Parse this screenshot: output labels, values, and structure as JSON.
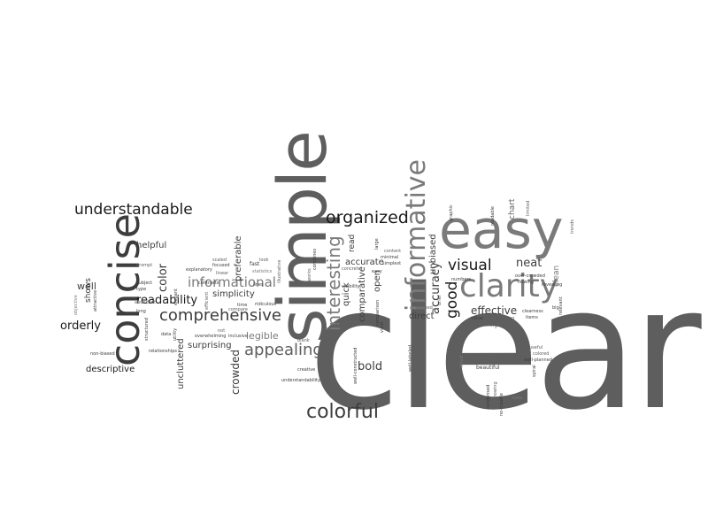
{
  "words": {
    "clear": "clear",
    "simple": "simple",
    "easy": "easy",
    "concise": "concise",
    "clarity": "clarity",
    "informative": "informative",
    "understandable": "understandable",
    "organized": "organized",
    "comprehensive": "comprehensive",
    "appealing": "appealing",
    "colorful": "colorful",
    "interesting": "interesting",
    "informational": "informational",
    "visual": "visual",
    "good": "good",
    "readability": "readability",
    "accuracy": "accuracy",
    "orderly": "orderly",
    "color": "color",
    "neat": "neat",
    "effective": "effective",
    "bold": "bold",
    "crowded": "crowded",
    "helpful": "helpful",
    "descriptive": "descriptive",
    "uncluttered": "uncluttered",
    "surprising": "surprising",
    "simplicity": "simplicity",
    "legible": "legible",
    "preferable": "preferable",
    "accurate": "accurate",
    "comparative": "comparative",
    "quick": "quick",
    "read": "read",
    "direct": "direct",
    "unbiased": "unbiased",
    "open": "open",
    "chart": "chart",
    "clean": "clean",
    "well": "well",
    "shows": "shows",
    "focused": "focused",
    "explanatory": "explanatory",
    "insightful": "insightful",
    "beautiful": "beautiful",
    "graphic": "graphic",
    "fast": "fast",
    "lines": "lines",
    "ridiculous": "ridiculous",
    "simplest": "simplest",
    "content": "content",
    "large": "large",
    "minimal": "minimal",
    "easy_small": "easy",
    "numbers": "numbers",
    "revealing": "revealing",
    "clearness": "clearness",
    "items": "items",
    "relevant": "relevant",
    "useful": "useful",
    "colored": "colored",
    "well_planned": "well-planned",
    "spiral": "spiral",
    "well_labeled": "well-labeled",
    "well_constructed": "well-constructed",
    "understandability": "understandability",
    "creative": "creative",
    "relationships": "relationships",
    "non_biased": "non-biased",
    "overwhelming": "overwhelming",
    "inclusive": "inclusive",
    "compare": "compare",
    "time": "time",
    "efficient": "efficient",
    "elegant": "elegant",
    "type": "type",
    "subject": "subject",
    "prompt": "prompt",
    "abundant": "abundant",
    "long": "long",
    "data": "data",
    "utility": "utility",
    "structured": "structured",
    "attractive": "attractive",
    "objective": "objective",
    "scaled": "scaled",
    "contrasts": "contrasts",
    "statistics": "statistics",
    "illustrative": "illustrative",
    "look": "look",
    "few": "few",
    "vivid": "vivid",
    "combines": "combines",
    "works": "works",
    "visibility": "visibility",
    "comparison": "comparison",
    "defined": "defined",
    "brief": "brief",
    "value": "value",
    "eye_opening": "eye-opening",
    "flowing": "flowing",
    "over_crowded": "over-crowded",
    "big": "big",
    "trends": "trends",
    "readable": "readable",
    "limited": "limited",
    "showing": "showing",
    "condensed": "condensed",
    "no_trouble": "no-trouble",
    "titled": "titled",
    "not": "not",
    "linear": "linear",
    "blank": "blank",
    "concrete": "concrete",
    "sizes": "sizes"
  }
}
